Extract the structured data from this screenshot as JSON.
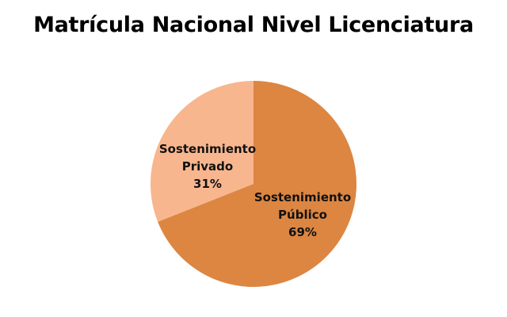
{
  "chart_data": {
    "type": "pie",
    "title": "Matrícula Nacional Nivel Licenciatura",
    "slices": [
      {
        "name": "Sostenimiento Público",
        "label_lines": [
          "Sostenimiento",
          "Público",
          "69%"
        ],
        "value": 69,
        "color": "#DC8642"
      },
      {
        "name": "Sostenimiento Privado",
        "label_lines": [
          "Sostenimiento",
          "Privado",
          "31%"
        ],
        "value": 31,
        "color": "#F8B68E"
      }
    ],
    "legend": "none",
    "start_angle": "12 o'clock",
    "direction": "clockwise"
  }
}
